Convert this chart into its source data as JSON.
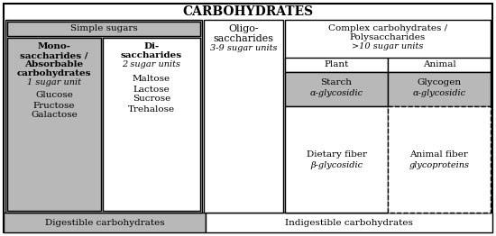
{
  "title": "CARBOHYDRATES",
  "bg_color": "#ffffff",
  "light_gray": "#b8b8b8",
  "white": "#ffffff",
  "black": "#000000",
  "bottom_left_label": "Digestible carbohydrates",
  "bottom_right_label": "Indigestible carbohydrates",
  "simple_sugars_label": "Simple sugars",
  "mono_line1": "Mono-",
  "mono_line2": "saccharides /",
  "mono_line3": "Absorbable",
  "mono_line4": "carbohydrates",
  "mono_sub": "1 sugar unit",
  "mono_items": [
    "Glucose",
    "Fructose",
    "Galactose"
  ],
  "di_line1": "Di-",
  "di_line2": "saccharides",
  "di_sub": "2 sugar units",
  "di_items": [
    "Maltose",
    "Lactose",
    "Sucrose",
    "Trehalose"
  ],
  "oligo_line1": "Oligo-",
  "oligo_line2": "saccharides",
  "oligo_sub": "3-9 sugar units",
  "complex_line1": "Complex carbohydrates /",
  "complex_line2": "Polysaccharides",
  "complex_sub": ">10 sugar units",
  "plant_label": "Plant",
  "animal_label": "Animal",
  "starch_line1": "Starch",
  "starch_line2": "α-glycosidic",
  "glycogen_line1": "Glycogen",
  "glycogen_line2": "α-glycosidic",
  "dietary_line1": "Dietary fiber",
  "dietary_line2": "β-glycosidic",
  "animal_fiber_line1": "Animal fiber",
  "animal_fiber_line2": "glycoproteins"
}
